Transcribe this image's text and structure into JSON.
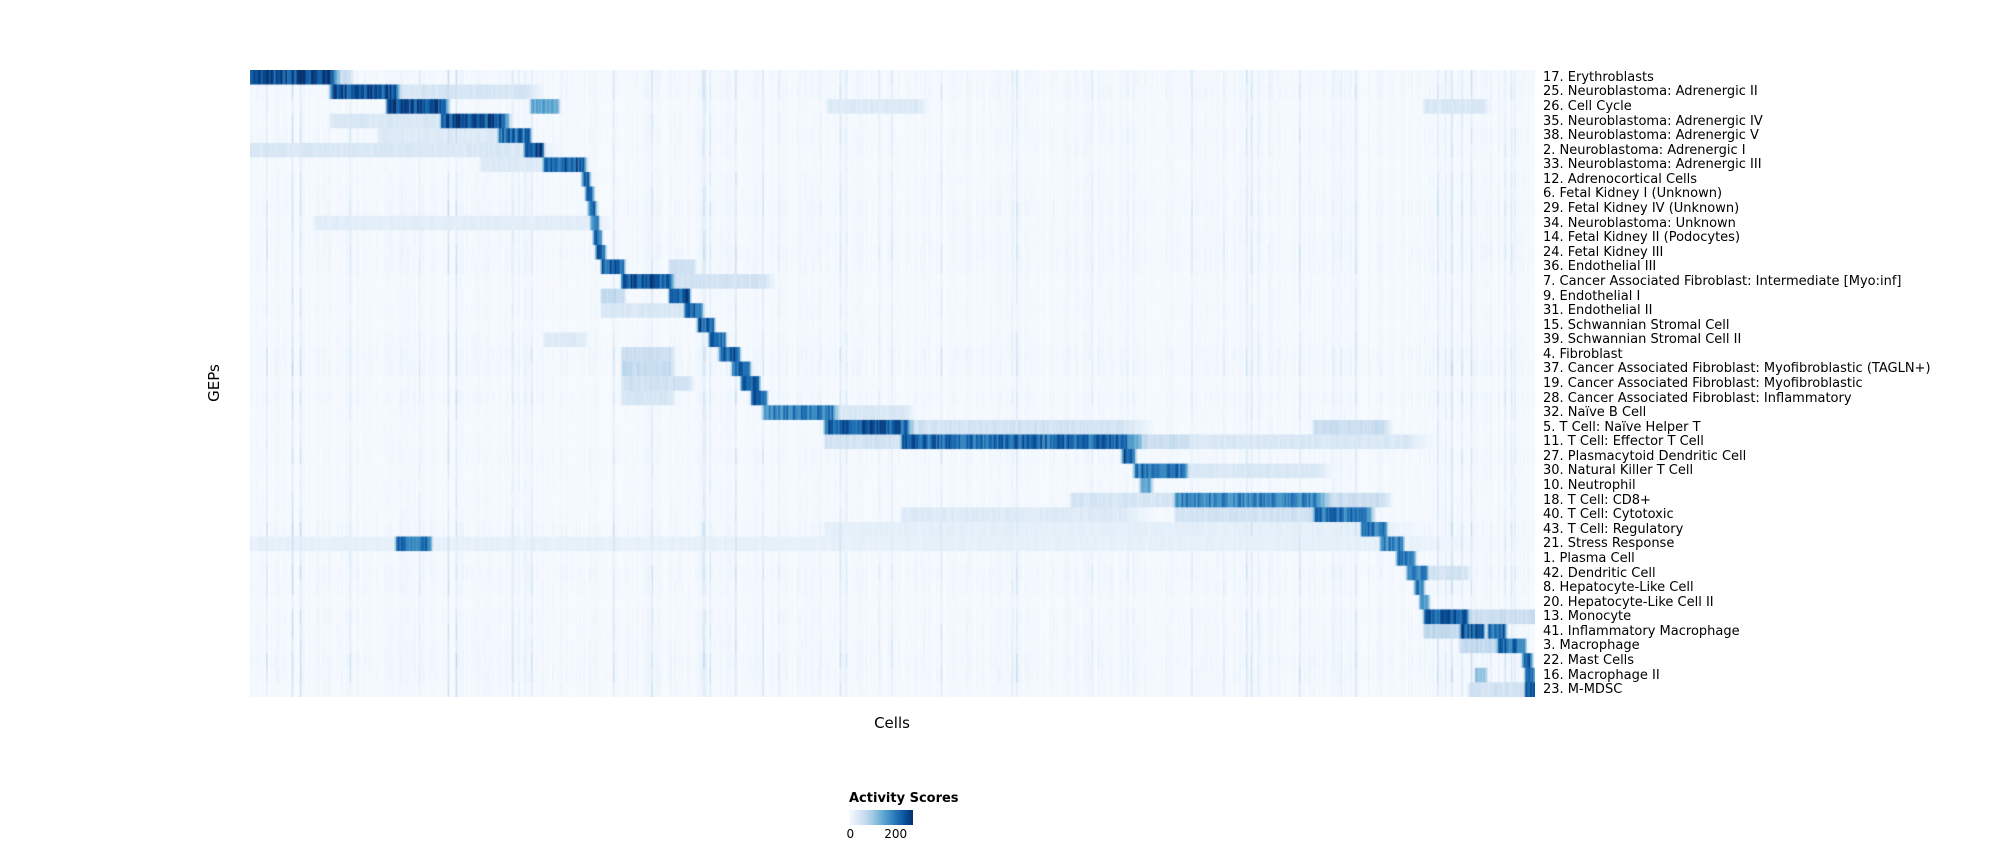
{
  "figure": {
    "x_axis_label": "Cells",
    "y_axis_label": "GEPs",
    "legend": {
      "title": "Activity Scores",
      "ticks": [
        {
          "label": "0",
          "pos": 0.02
        },
        {
          "label": "200",
          "pos": 0.73
        }
      ]
    }
  },
  "chart_data": {
    "type": "heatmap",
    "title": "",
    "xlabel": "Cells",
    "ylabel": "GEPs",
    "colorbar_title": "Activity Scores",
    "colorbar_tick_values": [
      0,
      200
    ],
    "color_vmax": 273,
    "colormap_name": "Blues",
    "colormap": [
      {
        "t": 0.0,
        "hex": "#f7fbff"
      },
      {
        "t": 0.125,
        "hex": "#deebf7"
      },
      {
        "t": 0.25,
        "hex": "#c6dbef"
      },
      {
        "t": 0.375,
        "hex": "#9ecae1"
      },
      {
        "t": 0.5,
        "hex": "#6baed6"
      },
      {
        "t": 0.625,
        "hex": "#4292c6"
      },
      {
        "t": 0.75,
        "hex": "#2171b5"
      },
      {
        "t": 0.875,
        "hex": "#08519c"
      },
      {
        "t": 1.0,
        "hex": "#08306b"
      }
    ],
    "render": {
      "n_columns": 800,
      "seed": 42,
      "background_noise_max": 10,
      "streak_fraction": 0.1,
      "streak_boost_max": 34
    },
    "rows": [
      {
        "label": "17. Erythroblasts",
        "segments": [
          [
            0.0,
            0.063,
            245
          ],
          [
            0.063,
            0.078,
            60
          ]
        ]
      },
      {
        "label": "25. Neuroblastoma: Adrenergic II",
        "segments": [
          [
            0.063,
            0.112,
            235
          ],
          [
            0.112,
            0.215,
            45
          ]
        ]
      },
      {
        "label": "26. Cell Cycle",
        "segments": [
          [
            0.107,
            0.15,
            240
          ],
          [
            0.219,
            0.239,
            150
          ],
          [
            0.45,
            0.52,
            35
          ],
          [
            0.915,
            0.96,
            40
          ]
        ]
      },
      {
        "label": "35. Neuroblastoma: Adrenergic IV",
        "segments": [
          [
            0.149,
            0.197,
            235
          ],
          [
            0.063,
            0.149,
            40
          ]
        ]
      },
      {
        "label": "38. Neuroblastoma: Adrenergic V",
        "segments": [
          [
            0.194,
            0.217,
            210
          ],
          [
            0.1,
            0.194,
            35
          ]
        ]
      },
      {
        "label": "2. Neuroblastoma: Adrenergic I",
        "segments": [
          [
            0.214,
            0.227,
            245
          ],
          [
            0.0,
            0.214,
            40
          ]
        ]
      },
      {
        "label": "33. Neuroblastoma: Adrenergic III",
        "segments": [
          [
            0.229,
            0.259,
            225
          ],
          [
            0.18,
            0.229,
            35
          ]
        ]
      },
      {
        "label": "12. Adrenocortical Cells",
        "segments": [
          [
            0.259,
            0.263,
            220
          ]
        ]
      },
      {
        "label": "6. Fetal Kidney I (Unknown)",
        "segments": [
          [
            0.262,
            0.266,
            210
          ]
        ]
      },
      {
        "label": "29. Fetal Kidney IV (Unknown)",
        "segments": [
          [
            0.264,
            0.268,
            205
          ]
        ]
      },
      {
        "label": "34. Neuroblastoma: Unknown",
        "segments": [
          [
            0.266,
            0.27,
            200
          ],
          [
            0.05,
            0.26,
            28
          ]
        ]
      },
      {
        "label": "14. Fetal Kidney II (Podocytes)",
        "segments": [
          [
            0.268,
            0.272,
            210
          ]
        ]
      },
      {
        "label": "24. Fetal Kidney III",
        "segments": [
          [
            0.27,
            0.275,
            215
          ]
        ]
      },
      {
        "label": "36. Endothelial III",
        "segments": [
          [
            0.274,
            0.29,
            220
          ],
          [
            0.327,
            0.345,
            60
          ]
        ]
      },
      {
        "label": "7. Cancer Associated Fibroblast: Intermediate [Myo:inf]",
        "segments": [
          [
            0.29,
            0.327,
            235
          ],
          [
            0.327,
            0.4,
            50
          ]
        ]
      },
      {
        "label": "9. Endothelial I",
        "segments": [
          [
            0.327,
            0.341,
            235
          ],
          [
            0.274,
            0.29,
            70
          ]
        ]
      },
      {
        "label": "31. Endothelial II",
        "segments": [
          [
            0.339,
            0.351,
            215
          ],
          [
            0.274,
            0.339,
            40
          ]
        ]
      },
      {
        "label": "15. Schwannian Stromal Cell",
        "segments": [
          [
            0.349,
            0.36,
            225
          ]
        ]
      },
      {
        "label": "39. Schwannian Stromal Cell II",
        "segments": [
          [
            0.358,
            0.369,
            205
          ],
          [
            0.229,
            0.259,
            35
          ]
        ]
      },
      {
        "label": "4. Fibroblast",
        "segments": [
          [
            0.366,
            0.38,
            225
          ],
          [
            0.29,
            0.327,
            60
          ]
        ]
      },
      {
        "label": "37. Cancer Associated Fibroblast: Myofibroblastic (TAGLN+)",
        "segments": [
          [
            0.376,
            0.388,
            215
          ],
          [
            0.29,
            0.327,
            70
          ]
        ]
      },
      {
        "label": "19. Cancer Associated Fibroblast: Myofibroblastic",
        "segments": [
          [
            0.383,
            0.395,
            225
          ],
          [
            0.29,
            0.34,
            50
          ]
        ]
      },
      {
        "label": "28. Cancer Associated Fibroblast: Inflammatory",
        "segments": [
          [
            0.391,
            0.401,
            215
          ],
          [
            0.29,
            0.327,
            45
          ]
        ]
      },
      {
        "label": "32. Naïve B Cell",
        "segments": [
          [
            0.4,
            0.453,
            190
          ],
          [
            0.453,
            0.51,
            40
          ]
        ]
      },
      {
        "label": "5. T Cell: Naïve Helper T",
        "segments": [
          [
            0.448,
            0.51,
            225
          ],
          [
            0.51,
            0.68,
            50
          ],
          [
            0.829,
            0.883,
            60
          ]
        ]
      },
      {
        "label": "11. T Cell: Effector T Cell",
        "segments": [
          [
            0.508,
            0.68,
            215
          ],
          [
            0.68,
            0.73,
            60
          ],
          [
            0.73,
            0.9,
            40
          ],
          [
            0.448,
            0.508,
            50
          ]
        ]
      },
      {
        "label": "27. Plasmacytoid Dendritic Cell",
        "segments": [
          [
            0.68,
            0.688,
            235
          ]
        ]
      },
      {
        "label": "30. Natural Killer T Cell",
        "segments": [
          [
            0.689,
            0.727,
            205
          ],
          [
            0.727,
            0.831,
            40
          ]
        ]
      },
      {
        "label": "10. Neutrophil",
        "segments": [
          [
            0.694,
            0.701,
            150
          ]
        ]
      },
      {
        "label": "18. T Cell: CD8+",
        "segments": [
          [
            0.721,
            0.831,
            185
          ],
          [
            0.64,
            0.721,
            45
          ],
          [
            0.831,
            0.883,
            60
          ]
        ]
      },
      {
        "label": "40. T Cell: Cytotoxic",
        "segments": [
          [
            0.829,
            0.871,
            200
          ],
          [
            0.721,
            0.829,
            50
          ],
          [
            0.508,
            0.68,
            35
          ]
        ]
      },
      {
        "label": "43. T Cell: Regulatory",
        "segments": [
          [
            0.866,
            0.884,
            190
          ],
          [
            0.448,
            0.866,
            25
          ]
        ]
      },
      {
        "label": "21. Stress Response",
        "segments": [
          [
            0.881,
            0.897,
            190
          ],
          [
            0.114,
            0.139,
            200
          ],
          [
            0.0,
            0.881,
            22
          ]
        ]
      },
      {
        "label": "1. Plasma Cell",
        "segments": [
          [
            0.894,
            0.906,
            210
          ]
        ]
      },
      {
        "label": "42. Dendritic Cell",
        "segments": [
          [
            0.902,
            0.916,
            195
          ],
          [
            0.915,
            0.947,
            50
          ]
        ]
      },
      {
        "label": "8. Hepatocyte-Like Cell",
        "segments": [
          [
            0.908,
            0.913,
            180
          ]
        ]
      },
      {
        "label": "20. Hepatocyte-Like Cell II",
        "segments": [
          [
            0.912,
            0.917,
            180
          ]
        ]
      },
      {
        "label": "13. Monocyte",
        "segments": [
          [
            0.915,
            0.947,
            225
          ],
          [
            0.947,
            1.0,
            60
          ]
        ]
      },
      {
        "label": "41. Inflammatory Macrophage",
        "segments": [
          [
            0.943,
            0.96,
            225
          ],
          [
            0.965,
            0.977,
            215
          ],
          [
            0.915,
            0.943,
            70
          ]
        ]
      },
      {
        "label": "3. Macrophage",
        "segments": [
          [
            0.972,
            0.992,
            205
          ],
          [
            0.943,
            0.972,
            70
          ]
        ]
      },
      {
        "label": "22. Mast Cells",
        "segments": [
          [
            0.992,
            0.997,
            225
          ]
        ]
      },
      {
        "label": "16. Macrophage II",
        "segments": [
          [
            0.955,
            0.962,
            120
          ],
          [
            0.994,
            0.999,
            200
          ]
        ]
      },
      {
        "label": "23. M-MDSC",
        "segments": [
          [
            0.994,
            1.0,
            240
          ],
          [
            0.95,
            0.994,
            50
          ]
        ]
      }
    ]
  }
}
